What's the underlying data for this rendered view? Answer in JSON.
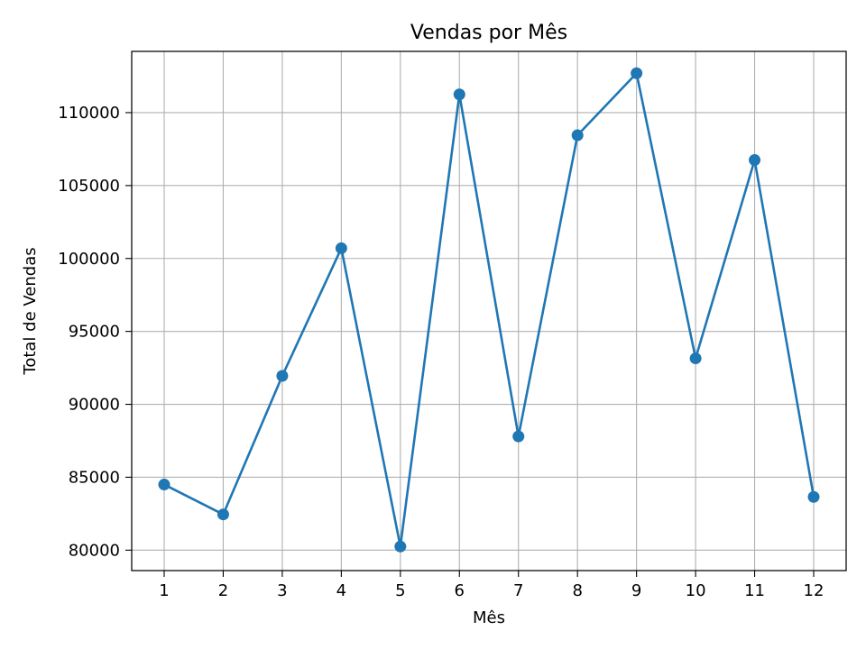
{
  "chart_data": {
    "type": "line",
    "title": "Vendas por Mês",
    "xlabel": "Mês",
    "ylabel": "Total de Vendas",
    "x": [
      1,
      2,
      3,
      4,
      5,
      6,
      7,
      8,
      9,
      10,
      11,
      12
    ],
    "x_tick_labels": [
      "1",
      "2",
      "3",
      "4",
      "5",
      "6",
      "7",
      "8",
      "9",
      "10",
      "11",
      "12"
    ],
    "y_ticks": [
      80000,
      85000,
      90000,
      95000,
      100000,
      105000,
      110000
    ],
    "y_tick_labels": [
      "80000",
      "85000",
      "90000",
      "95000",
      "100000",
      "105000",
      "110000"
    ],
    "xlim": [
      0.45,
      12.55
    ],
    "ylim": [
      78600,
      114200
    ],
    "grid": true,
    "marker": "circle",
    "series": [
      {
        "color": "#1f77b4",
        "values": [
          84500,
          82450,
          91950,
          100700,
          80250,
          111250,
          87800,
          108450,
          112700,
          93150,
          106750,
          83650
        ]
      }
    ]
  }
}
